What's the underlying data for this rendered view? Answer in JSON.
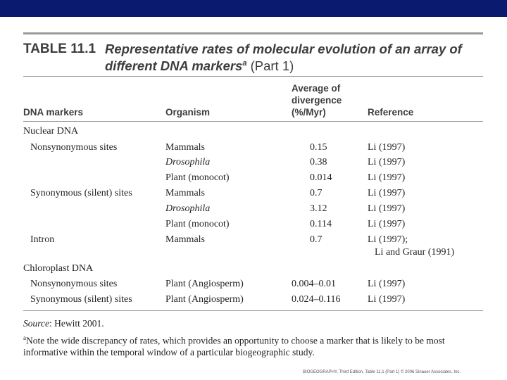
{
  "header_bar_color": "#0a1a6e",
  "table": {
    "number": "TABLE 11.1",
    "title": "Representative rates of molecular evolution of an array of different DNA markers",
    "title_sup": "a",
    "title_part": "(Part 1)",
    "columns": {
      "marker": "DNA markers",
      "organism": "Organism",
      "avg_line1": "Average of",
      "avg_line2": "divergence",
      "avg_line3": "(%/Myr)",
      "reference": "Reference"
    },
    "rows": [
      {
        "marker": "Nuclear DNA",
        "organism": "",
        "value": "",
        "reference": ""
      },
      {
        "marker": "Nonsynonymous sites",
        "organism": "Mammals",
        "value": "0.15",
        "reference": "Li (1997)"
      },
      {
        "marker": "",
        "organism": "Drosophila",
        "value": "0.38",
        "reference": "Li (1997)"
      },
      {
        "marker": "",
        "organism": "Plant (monocot)",
        "value": "0.014",
        "reference": "Li (1997)"
      },
      {
        "marker": "Synonymous (silent) sites",
        "organism": "Mammals",
        "value": "0.7",
        "reference": "Li (1997)"
      },
      {
        "marker": "",
        "organism": "Drosophila",
        "value": "3.12",
        "reference": "Li (1997)"
      },
      {
        "marker": "",
        "organism": "Plant (monocot)",
        "value": "0.114",
        "reference": "Li (1997)"
      },
      {
        "marker": "Intron",
        "organism": "Mammals",
        "value": "0.7",
        "reference": "Li (1997);",
        "reference2": "Li and Graur (1991)"
      },
      {
        "marker": "Chloroplast DNA",
        "organism": "",
        "value": "",
        "reference": ""
      },
      {
        "marker": "Nonsynonymous sites",
        "organism": "Plant (Angiosperm)",
        "value": "0.004–0.01",
        "reference": "Li (1997)"
      },
      {
        "marker": "Synonymous (silent) sites",
        "organism": "Plant (Angiosperm)",
        "value": "0.024–0.116",
        "reference": "Li (1997)"
      }
    ],
    "source_label": "Source",
    "source_text": ": Hewitt 2001.",
    "footnote_sup": "a",
    "footnote_text": "Note the wide discrepancy of rates, which provides an opportunity to choose a marker that is likely to be most informative within the temporal window of a particular biogeographic study."
  },
  "footer": "BIOGEOGRAPHY, Third Edition, Table 11.1 (Part 1) © 2006 Sinauer Associates, Inc."
}
